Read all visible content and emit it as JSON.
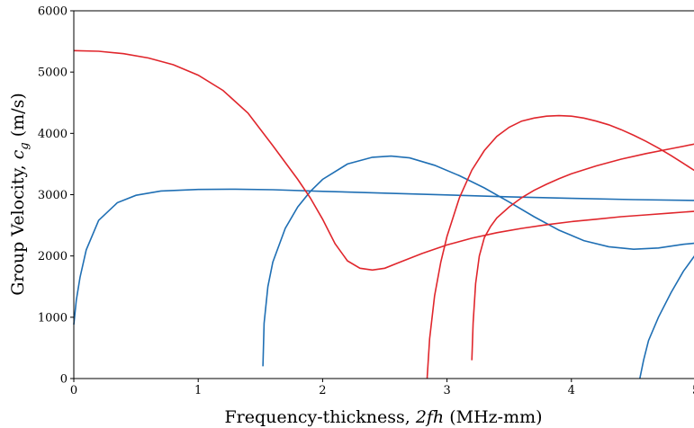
{
  "chart_data": {
    "type": "line",
    "xlabel": "Frequency-thickness, 2fh (MHz-mm)",
    "ylabel": "Group Velocity, c_g (m/s)",
    "xlim": [
      0,
      5
    ],
    "ylim": [
      0,
      6000
    ],
    "xticks": [
      "0",
      "1",
      "2",
      "3",
      "4",
      "5"
    ],
    "yticks": [
      "0",
      "1000",
      "2000",
      "3000",
      "4000",
      "5000",
      "6000"
    ],
    "grid": false,
    "legend": "none",
    "colors": {
      "blue": "#1f6fb4",
      "red": "#e0262c"
    },
    "series": [
      {
        "color": "blue",
        "x": [
          0.0,
          0.02,
          0.05,
          0.1,
          0.2,
          0.35,
          0.5,
          0.7,
          1.0,
          1.3,
          1.6,
          2.0,
          2.5,
          3.0,
          3.5,
          4.0,
          4.5,
          5.0
        ],
        "y": [
          880,
          1280,
          1650,
          2100,
          2580,
          2870,
          2990,
          3060,
          3085,
          3090,
          3080,
          3055,
          3025,
          2995,
          2965,
          2940,
          2920,
          2905
        ]
      },
      {
        "color": "blue",
        "x": [
          1.52,
          1.53,
          1.56,
          1.6,
          1.7,
          1.8,
          1.9,
          2.0,
          2.2,
          2.4,
          2.55,
          2.7,
          2.9,
          3.1,
          3.3,
          3.5,
          3.7,
          3.9,
          4.1,
          4.3,
          4.5,
          4.7,
          4.9,
          5.0
        ],
        "y": [
          200,
          900,
          1500,
          1900,
          2450,
          2800,
          3050,
          3250,
          3500,
          3610,
          3630,
          3600,
          3480,
          3310,
          3110,
          2880,
          2640,
          2420,
          2250,
          2150,
          2110,
          2130,
          2190,
          2210
        ]
      },
      {
        "color": "blue",
        "x": [
          4.55,
          4.58,
          4.62,
          4.7,
          4.8,
          4.9,
          5.0
        ],
        "y": [
          0,
          300,
          620,
          1000,
          1400,
          1750,
          2030
        ]
      },
      {
        "color": "red",
        "x": [
          0.0,
          0.2,
          0.4,
          0.6,
          0.8,
          1.0,
          1.2,
          1.4,
          1.6,
          1.8,
          1.9,
          2.0,
          2.1,
          2.2,
          2.3,
          2.4,
          2.5,
          2.6,
          2.8,
          3.0,
          3.2,
          3.4,
          3.6,
          3.8,
          4.0,
          4.2,
          4.4,
          4.6,
          4.8,
          5.0
        ],
        "y": [
          5350,
          5340,
          5300,
          5230,
          5120,
          4950,
          4700,
          4330,
          3800,
          3250,
          2950,
          2600,
          2200,
          1920,
          1800,
          1770,
          1800,
          1880,
          2040,
          2180,
          2290,
          2380,
          2450,
          2510,
          2560,
          2600,
          2640,
          2670,
          2700,
          2730
        ]
      },
      {
        "color": "red",
        "x": [
          2.84,
          2.86,
          2.9,
          2.95,
          3.0,
          3.1,
          3.2,
          3.3,
          3.4,
          3.5,
          3.6,
          3.7,
          3.8,
          3.9,
          4.0,
          4.1,
          4.2,
          4.3,
          4.4,
          4.5,
          4.6,
          4.7,
          4.8,
          4.9,
          5.0
        ],
        "y": [
          0,
          650,
          1350,
          1900,
          2320,
          2950,
          3400,
          3720,
          3950,
          4100,
          4200,
          4250,
          4280,
          4290,
          4280,
          4250,
          4200,
          4140,
          4060,
          3970,
          3870,
          3760,
          3640,
          3510,
          3380
        ]
      },
      {
        "color": "red",
        "x": [
          3.2,
          3.21,
          3.23,
          3.26,
          3.3,
          3.35,
          3.4,
          3.5,
          3.6,
          3.7,
          3.8,
          3.9,
          4.0,
          4.2,
          4.4,
          4.6,
          4.8,
          5.0
        ],
        "y": [
          300,
          900,
          1550,
          2000,
          2300,
          2480,
          2620,
          2800,
          2950,
          3070,
          3170,
          3260,
          3340,
          3470,
          3580,
          3670,
          3750,
          3830
        ]
      }
    ]
  }
}
